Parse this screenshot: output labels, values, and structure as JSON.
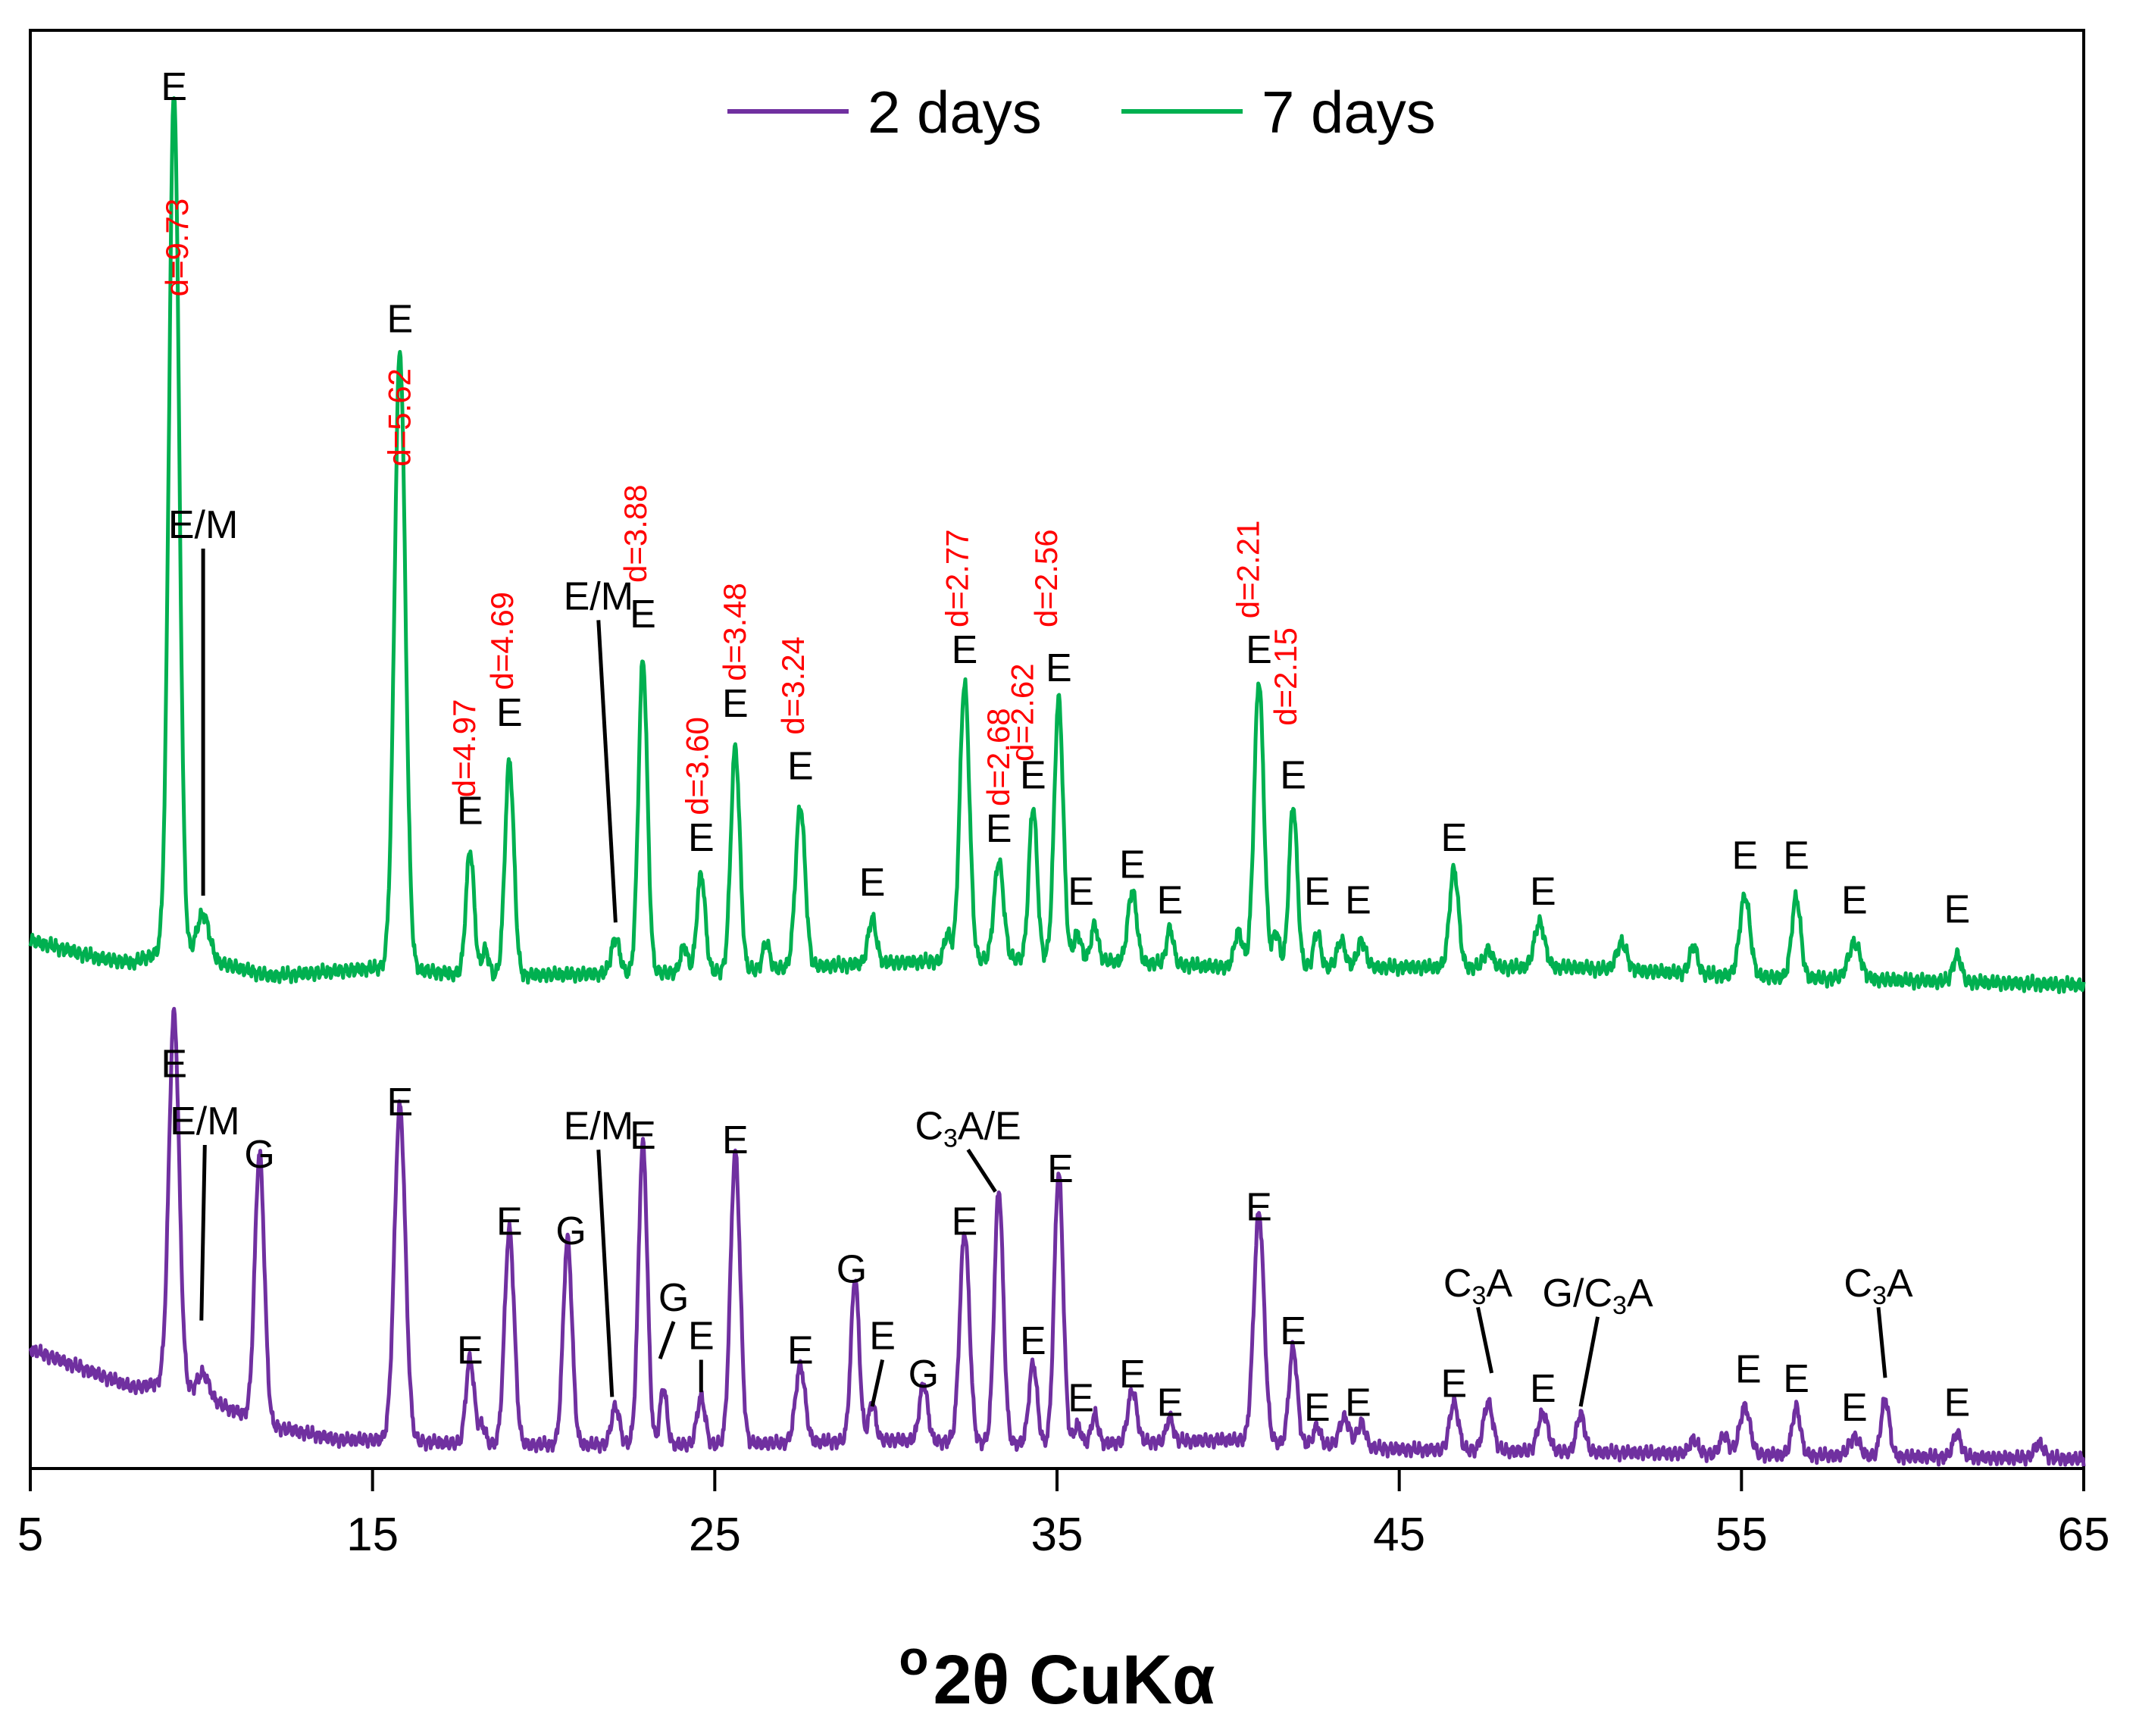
{
  "chart_data": {
    "type": "line",
    "xlabel": "o2θ CuKα",
    "xlabel_sup": "o",
    "xlabel_main": "2θ CuKα",
    "ylabel": "",
    "xlim": [
      5,
      65
    ],
    "ylim": [
      0,
      100
    ],
    "xticks": [
      "5",
      "15",
      "25",
      "35",
      "45",
      "55",
      "65"
    ],
    "grid": false,
    "legend_position": "top-center",
    "series": [
      {
        "name": "2 days",
        "color": "#7030a0",
        "baseline": [
          [
            5,
            25
          ],
          [
            8,
            17
          ],
          [
            9,
            18
          ],
          [
            12,
            9
          ],
          [
            14,
            6
          ],
          [
            15.5,
            6
          ],
          [
            18,
            5
          ],
          [
            25,
            5
          ],
          [
            30,
            6
          ],
          [
            35,
            5
          ],
          [
            40,
            6
          ],
          [
            45,
            4
          ],
          [
            50,
            3.5
          ],
          [
            55,
            3
          ],
          [
            60,
            2.5
          ],
          [
            65,
            2
          ]
        ],
        "peaks": [
          [
            9.2,
            78,
            0.15
          ],
          [
            10.05,
            5,
            0.18
          ],
          [
            11.7,
            56,
            0.14
          ],
          [
            15.8,
            70,
            0.16
          ],
          [
            17.85,
            18,
            0.12
          ],
          [
            18.2,
            4,
            0.1
          ],
          [
            19.0,
            45,
            0.14
          ],
          [
            20.7,
            43,
            0.13
          ],
          [
            22.1,
            8,
            0.12
          ],
          [
            22.9,
            63,
            0.13
          ],
          [
            23.5,
            12,
            0.1
          ],
          [
            24.6,
            10,
            0.12
          ],
          [
            25.6,
            61,
            0.14
          ],
          [
            27.5,
            16,
            0.14
          ],
          [
            29.1,
            34,
            0.12
          ],
          [
            29.6,
            8,
            0.1
          ],
          [
            31.1,
            12,
            0.12
          ],
          [
            32.3,
            44,
            0.14
          ],
          [
            33.3,
            53,
            0.13
          ],
          [
            34.3,
            17,
            0.12
          ],
          [
            35.05,
            57,
            0.13
          ],
          [
            35.6,
            4,
            0.1
          ],
          [
            36.1,
            6,
            0.1
          ],
          [
            37.2,
            11,
            0.13
          ],
          [
            38.3,
            5,
            0.1
          ],
          [
            40.9,
            48,
            0.15
          ],
          [
            41.9,
            20,
            0.12
          ],
          [
            42.6,
            4,
            0.1
          ],
          [
            43.4,
            6,
            0.15
          ],
          [
            43.9,
            5,
            0.12
          ],
          [
            46.6,
            10,
            0.13
          ],
          [
            47.6,
            10,
            0.14
          ],
          [
            49.2,
            8,
            0.15
          ],
          [
            50.3,
            8,
            0.12
          ],
          [
            53.6,
            3,
            0.12
          ],
          [
            54.5,
            4,
            0.12
          ],
          [
            55.1,
            10,
            0.15
          ],
          [
            56.6,
            10,
            0.12
          ],
          [
            58.3,
            4,
            0.15
          ],
          [
            59.2,
            12,
            0.12
          ],
          [
            61.3,
            5,
            0.12
          ],
          [
            63.7,
            3,
            0.15
          ]
        ]
      },
      {
        "name": "7 days",
        "color": "#00b050",
        "baseline": [
          [
            5,
            5
          ],
          [
            7,
            3
          ],
          [
            8,
            2.5
          ],
          [
            9,
            4
          ],
          [
            12,
            1
          ],
          [
            15.5,
            2
          ],
          [
            18,
            1
          ],
          [
            25,
            1.5
          ],
          [
            30,
            2.5
          ],
          [
            35,
            3
          ],
          [
            40,
            2
          ],
          [
            45,
            2
          ],
          [
            50,
            2
          ],
          [
            55,
            1
          ],
          [
            60,
            0.5
          ],
          [
            65,
            0
          ]
        ],
        "peaks": [
          [
            9.2,
            96,
            0.15
          ],
          [
            10.05,
            5,
            0.18
          ],
          [
            15.8,
            69,
            0.16
          ],
          [
            17.85,
            14,
            0.12
          ],
          [
            18.3,
            3,
            0.1
          ],
          [
            19.0,
            24,
            0.13
          ],
          [
            22.1,
            4,
            0.12
          ],
          [
            22.9,
            35,
            0.13
          ],
          [
            24.1,
            3,
            0.1
          ],
          [
            24.6,
            11,
            0.12
          ],
          [
            25.6,
            25,
            0.13
          ],
          [
            26.5,
            3,
            0.1
          ],
          [
            27.5,
            18,
            0.14
          ],
          [
            29.6,
            5,
            0.12
          ],
          [
            31.8,
            3,
            0.1
          ],
          [
            32.3,
            31,
            0.14
          ],
          [
            33.3,
            11,
            0.14
          ],
          [
            34.3,
            17,
            0.12
          ],
          [
            35.05,
            29,
            0.13
          ],
          [
            35.6,
            3,
            0.1
          ],
          [
            36.1,
            4,
            0.1
          ],
          [
            37.2,
            8,
            0.13
          ],
          [
            38.3,
            4,
            0.1
          ],
          [
            40.3,
            4,
            0.12
          ],
          [
            40.9,
            32,
            0.14
          ],
          [
            41.4,
            4,
            0.1
          ],
          [
            41.9,
            18,
            0.12
          ],
          [
            42.6,
            4,
            0.1
          ],
          [
            43.3,
            3,
            0.12
          ],
          [
            43.9,
            3,
            0.12
          ],
          [
            46.6,
            11,
            0.13
          ],
          [
            47.6,
            2,
            0.12
          ],
          [
            49.1,
            5,
            0.15
          ],
          [
            51.5,
            3,
            0.15
          ],
          [
            53.6,
            3,
            0.12
          ],
          [
            55.1,
            9,
            0.15
          ],
          [
            56.6,
            9,
            0.13
          ],
          [
            58.3,
            4,
            0.18
          ],
          [
            61.3,
            3,
            0.12
          ]
        ]
      }
    ],
    "annotations": [
      {
        "text": "E",
        "series": 1,
        "x": 9.2,
        "y": 99
      },
      {
        "text": "E/M",
        "series": 1,
        "x": 10.05,
        "y": 50,
        "leader_to": [
          10.05,
          10
        ]
      },
      {
        "text": "E",
        "series": 1,
        "x": 15.8,
        "y": 73
      },
      {
        "text": "E",
        "series": 1,
        "x": 17.85,
        "y": 18
      },
      {
        "text": "E",
        "series": 1,
        "x": 19.0,
        "y": 29
      },
      {
        "text": "E/M",
        "series": 1,
        "x": 21.6,
        "y": 42,
        "leader_to": [
          22.1,
          7
        ]
      },
      {
        "text": "E",
        "series": 1,
        "x": 22.9,
        "y": 40
      },
      {
        "text": "E",
        "series": 1,
        "x": 24.6,
        "y": 15
      },
      {
        "text": "E",
        "series": 1,
        "x": 25.6,
        "y": 30
      },
      {
        "text": "E",
        "series": 1,
        "x": 27.5,
        "y": 23
      },
      {
        "text": "E",
        "series": 1,
        "x": 29.6,
        "y": 10
      },
      {
        "text": "E",
        "series": 1,
        "x": 32.3,
        "y": 36
      },
      {
        "text": "E",
        "series": 1,
        "x": 33.3,
        "y": 16
      },
      {
        "text": "E",
        "series": 1,
        "x": 34.3,
        "y": 22
      },
      {
        "text": "E",
        "series": 1,
        "x": 35.05,
        "y": 34
      },
      {
        "text": "E",
        "series": 1,
        "x": 35.7,
        "y": 9
      },
      {
        "text": "E",
        "series": 1,
        "x": 37.2,
        "y": 12
      },
      {
        "text": "E",
        "series": 1,
        "x": 38.3,
        "y": 8
      },
      {
        "text": "E",
        "series": 1,
        "x": 40.9,
        "y": 36
      },
      {
        "text": "E",
        "series": 1,
        "x": 41.9,
        "y": 22
      },
      {
        "text": "E",
        "series": 1,
        "x": 42.6,
        "y": 9
      },
      {
        "text": "E",
        "series": 1,
        "x": 43.8,
        "y": 8
      },
      {
        "text": "E",
        "series": 1,
        "x": 46.6,
        "y": 15
      },
      {
        "text": "E",
        "series": 1,
        "x": 49.2,
        "y": 9
      },
      {
        "text": "E",
        "series": 1,
        "x": 55.1,
        "y": 13
      },
      {
        "text": "E",
        "series": 1,
        "x": 56.6,
        "y": 13
      },
      {
        "text": "E",
        "series": 1,
        "x": 58.3,
        "y": 8
      },
      {
        "text": "E",
        "series": 1,
        "x": 61.3,
        "y": 7
      },
      {
        "text": "E",
        "series": 0,
        "x": 9.2,
        "y": 82
      },
      {
        "text": "E/M",
        "series": 0,
        "x": 10.1,
        "y": 70,
        "leader_to": [
          10.0,
          31
        ]
      },
      {
        "text": "G",
        "series": 0,
        "x": 11.7,
        "y": 63
      },
      {
        "text": "E",
        "series": 0,
        "x": 15.8,
        "y": 74
      },
      {
        "text": "E",
        "series": 0,
        "x": 17.85,
        "y": 22
      },
      {
        "text": "E",
        "series": 0,
        "x": 19.0,
        "y": 49
      },
      {
        "text": "G",
        "series": 0,
        "x": 20.8,
        "y": 47
      },
      {
        "text": "E/M",
        "series": 0,
        "x": 21.6,
        "y": 69,
        "leader_to": [
          22.0,
          15
        ]
      },
      {
        "text": "E",
        "series": 0,
        "x": 22.9,
        "y": 67
      },
      {
        "text": "G",
        "series": 0,
        "x": 23.8,
        "y": 33,
        "leader_to": [
          23.4,
          23
        ]
      },
      {
        "text": "E",
        "series": 0,
        "x": 24.6,
        "y": 25,
        "leader_to": [
          24.6,
          16
        ]
      },
      {
        "text": "E",
        "series": 0,
        "x": 25.6,
        "y": 66
      },
      {
        "text": "E",
        "series": 0,
        "x": 27.5,
        "y": 22
      },
      {
        "text": "G",
        "series": 0,
        "x": 29.0,
        "y": 39
      },
      {
        "text": "E",
        "series": 0,
        "x": 29.9,
        "y": 25,
        "leader_to": [
          29.6,
          13
        ]
      },
      {
        "text": "G",
        "series": 0,
        "x": 31.1,
        "y": 17
      },
      {
        "text": "C3A/E",
        "series": 0,
        "x": 32.4,
        "y": 69,
        "leader_to": [
          33.2,
          58
        ]
      },
      {
        "text": "E",
        "series": 0,
        "x": 32.3,
        "y": 49
      },
      {
        "text": "E",
        "series": 0,
        "x": 34.3,
        "y": 24
      },
      {
        "text": "E",
        "series": 0,
        "x": 35.1,
        "y": 60
      },
      {
        "text": "E",
        "series": 0,
        "x": 35.7,
        "y": 12
      },
      {
        "text": "E",
        "series": 0,
        "x": 37.2,
        "y": 17
      },
      {
        "text": "E",
        "series": 0,
        "x": 38.3,
        "y": 11
      },
      {
        "text": "E",
        "series": 0,
        "x": 40.9,
        "y": 52
      },
      {
        "text": "E",
        "series": 0,
        "x": 41.9,
        "y": 26
      },
      {
        "text": "E",
        "series": 0,
        "x": 42.6,
        "y": 10
      },
      {
        "text": "E",
        "series": 0,
        "x": 43.8,
        "y": 11
      },
      {
        "text": "E",
        "series": 0,
        "x": 46.6,
        "y": 15
      },
      {
        "text": "C3A",
        "series": 0,
        "x": 47.3,
        "y": 36,
        "leader_to": [
          47.7,
          20
        ]
      },
      {
        "text": "G/C3A",
        "series": 0,
        "x": 50.8,
        "y": 34,
        "leader_to": [
          50.3,
          13
        ]
      },
      {
        "text": "E",
        "series": 0,
        "x": 49.2,
        "y": 14
      },
      {
        "text": "E",
        "series": 0,
        "x": 55.2,
        "y": 18
      },
      {
        "text": "E",
        "series": 0,
        "x": 56.6,
        "y": 16
      },
      {
        "text": "E",
        "series": 0,
        "x": 58.3,
        "y": 10
      },
      {
        "text": "C3A",
        "series": 0,
        "x": 59.0,
        "y": 36,
        "leader_to": [
          59.2,
          19
        ]
      },
      {
        "text": "E",
        "series": 0,
        "x": 61.3,
        "y": 11
      }
    ],
    "d_spacings": [
      {
        "text": "d=9.73",
        "x": 9.6,
        "y": 77
      },
      {
        "text": "d=5.62",
        "x": 16.1,
        "y": 58
      },
      {
        "text": "d=4.97",
        "x": 18.0,
        "y": 21
      },
      {
        "text": "d=4.69",
        "x": 19.1,
        "y": 33
      },
      {
        "text": "d=3.88",
        "x": 23.0,
        "y": 45
      },
      {
        "text": "d=3.60",
        "x": 24.8,
        "y": 19
      },
      {
        "text": "d=3.48",
        "x": 25.9,
        "y": 34
      },
      {
        "text": "d=3.24",
        "x": 27.6,
        "y": 28
      },
      {
        "text": "d=2.77",
        "x": 32.4,
        "y": 40
      },
      {
        "text": "d=2.68",
        "x": 33.6,
        "y": 20
      },
      {
        "text": "d=2.62",
        "x": 34.3,
        "y": 25
      },
      {
        "text": "d=2.56",
        "x": 35.0,
        "y": 40
      },
      {
        "text": "d=2.21",
        "x": 40.9,
        "y": 41
      },
      {
        "text": "d=2.15",
        "x": 42.0,
        "y": 29
      }
    ]
  }
}
